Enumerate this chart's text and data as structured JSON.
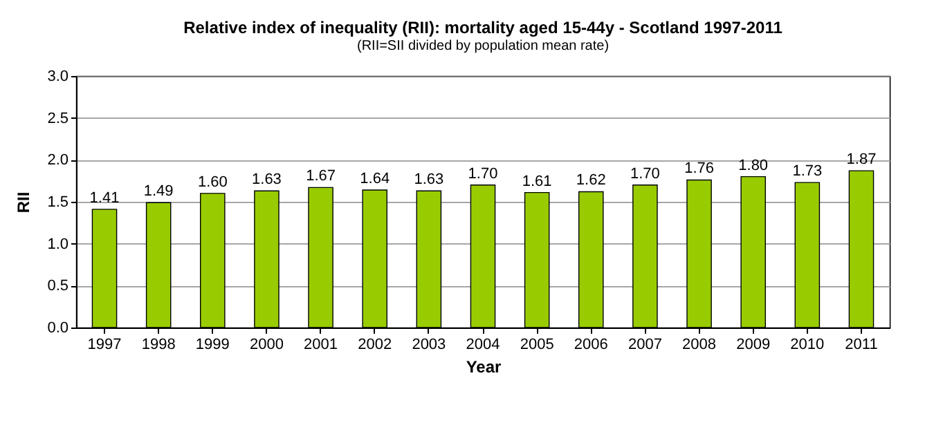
{
  "chart_data": {
    "type": "bar",
    "title": "Relative index of inequality (RII): mortality aged 15-44y - Scotland 1997-2011",
    "subtitle": "(RII=SII divided by population mean rate)",
    "xlabel": "Year",
    "ylabel": "RII",
    "categories": [
      "1997",
      "1998",
      "1999",
      "2000",
      "2001",
      "2002",
      "2003",
      "2004",
      "2005",
      "2006",
      "2007",
      "2008",
      "2009",
      "2010",
      "2011"
    ],
    "values": [
      1.41,
      1.49,
      1.6,
      1.63,
      1.67,
      1.64,
      1.63,
      1.7,
      1.61,
      1.62,
      1.7,
      1.76,
      1.8,
      1.73,
      1.87
    ],
    "value_labels": [
      "1.41",
      "1.49",
      "1.60",
      "1.63",
      "1.67",
      "1.64",
      "1.63",
      "1.70",
      "1.61",
      "1.62",
      "1.70",
      "1.76",
      "1.80",
      "1.73",
      "1.87"
    ],
    "color": "#99cc00",
    "ylim": [
      0,
      3
    ],
    "yticks": [
      {
        "value": 0,
        "label": "0.0"
      },
      {
        "value": 0.5,
        "label": "0.5"
      },
      {
        "value": 1,
        "label": "1.0"
      },
      {
        "value": 1.5,
        "label": "1.5"
      },
      {
        "value": 2,
        "label": "2.0"
      },
      {
        "value": 2.5,
        "label": "2.5"
      },
      {
        "value": 3,
        "label": "3.0"
      }
    ],
    "grid": "y"
  }
}
